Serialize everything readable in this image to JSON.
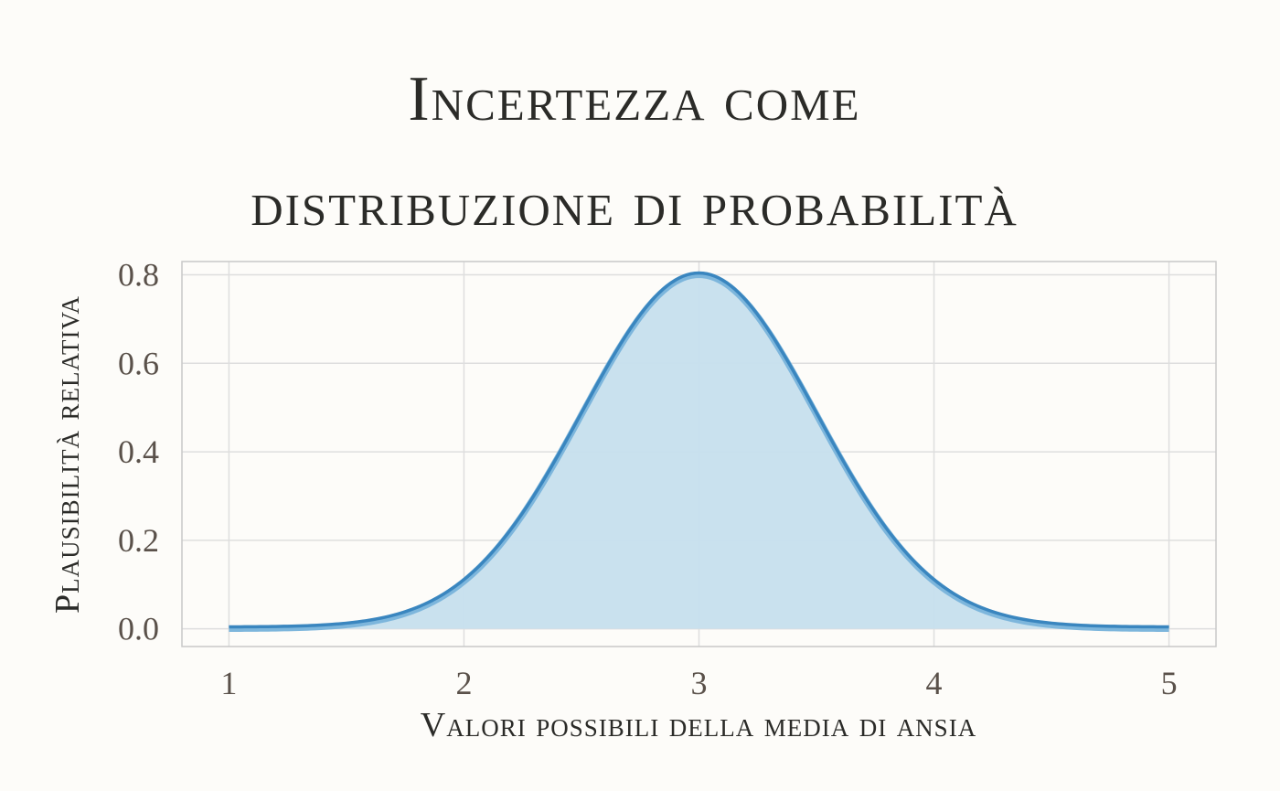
{
  "chart_data": {
    "type": "area",
    "title_lines": [
      "Incertezza come",
      "distribuzione di probabilità"
    ],
    "xlabel": "Valori possibili della media di ansia",
    "ylabel": "Plausibilità relativa",
    "xlim": [
      0.8,
      5.2
    ],
    "ylim": [
      -0.04,
      0.83
    ],
    "xticks": [
      1,
      2,
      3,
      4,
      5
    ],
    "xtick_labels": [
      "1",
      "2",
      "3",
      "4",
      "5"
    ],
    "yticks": [
      0.0,
      0.2,
      0.4,
      0.6,
      0.8
    ],
    "ytick_labels": [
      "0.0",
      "0.2",
      "0.4",
      "0.6",
      "0.8"
    ],
    "grid": true,
    "series": [
      {
        "x": [
          1.0,
          1.2,
          1.4,
          1.6,
          1.8,
          2.0,
          2.2,
          2.4,
          2.6,
          2.8,
          3.0,
          3.2,
          3.4,
          3.6,
          3.8,
          4.0,
          4.2,
          4.4,
          4.6,
          4.8,
          5.0
        ],
        "y": [
          0.0003,
          0.0012,
          0.0044,
          0.0142,
          0.0395,
          0.0952,
          0.1978,
          0.3555,
          0.5521,
          0.7415,
          0.8,
          0.7415,
          0.5521,
          0.3555,
          0.1978,
          0.0952,
          0.0395,
          0.0142,
          0.0044,
          0.0012,
          0.0003
        ]
      }
    ],
    "colors": {
      "line": "#3a86bf",
      "fill": "#c6dfed",
      "inner_line": "#7db6dc"
    }
  }
}
